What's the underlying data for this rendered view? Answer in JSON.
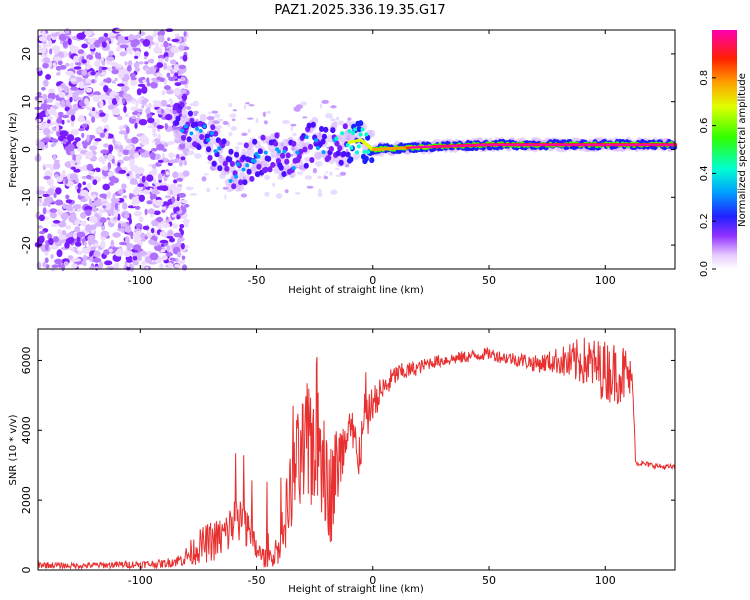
{
  "title": "PAZ1.2025.336.19.35.G17",
  "chart_data": [
    {
      "type": "heatmap",
      "title": "PAZ1.2025.336.19.35.G17",
      "xlabel": "Height of straight line (km)",
      "ylabel": "Frequency (Hz)",
      "xlim": [
        -144,
        130
      ],
      "ylim": [
        -25,
        25
      ],
      "x_ticks": [
        -100,
        -50,
        0,
        50,
        100
      ],
      "x_tick_labels": [
        "-100",
        "-50",
        "0",
        "50",
        "100"
      ],
      "y_ticks": [
        -20,
        -10,
        0,
        10,
        20
      ],
      "y_tick_labels": [
        "-20",
        "-10",
        "0",
        "10",
        "20"
      ],
      "colorbar": {
        "label": "Normalized spectral amplitude",
        "range": [
          0,
          1
        ],
        "ticks": [
          0.0,
          0.2,
          0.4,
          0.6,
          0.8
        ],
        "tick_labels": [
          "0.0",
          "0.2",
          "0.4",
          "0.6",
          "0.8"
        ]
      },
      "description_points": [
        {
          "x": -80,
          "freq": 5,
          "amp": 0.45
        },
        {
          "x": -70,
          "freq": 2,
          "amp": 0.3
        },
        {
          "x": -60,
          "freq": -5,
          "amp": 0.5
        },
        {
          "x": -45,
          "freq": 0,
          "amp": 0.5
        },
        {
          "x": -35,
          "freq": -2,
          "amp": 0.4
        },
        {
          "x": -25,
          "freq": 2,
          "amp": 0.45
        },
        {
          "x": -15,
          "freq": 1,
          "amp": 0.6
        },
        {
          "x": -5,
          "freq": 2,
          "amp": 0.7
        },
        {
          "x": 0,
          "freq": 0,
          "amp": 0.8
        },
        {
          "x": 20,
          "freq": 0.5,
          "amp": 0.9
        },
        {
          "x": 50,
          "freq": 1,
          "amp": 1.0
        },
        {
          "x": 80,
          "freq": 1,
          "amp": 1.0
        },
        {
          "x": 100,
          "freq": 1,
          "amp": 0.95
        },
        {
          "x": 130,
          "freq": 1,
          "amp": 1.0
        }
      ]
    },
    {
      "type": "line",
      "xlabel": "Height of straight line (km)",
      "ylabel": "SNR (10 * v/v)",
      "xlim": [
        -144,
        130
      ],
      "ylim": [
        0,
        6900
      ],
      "x_ticks": [
        -100,
        -50,
        0,
        50,
        100
      ],
      "x_tick_labels": [
        "-100",
        "-50",
        "0",
        "50",
        "100"
      ],
      "y_ticks": [
        0,
        2000,
        4000,
        6000
      ],
      "y_tick_labels": [
        "0",
        "2000",
        "4000",
        "6000"
      ],
      "series": [
        {
          "name": "SNR",
          "color": "#e83030",
          "x": [
            -144,
            -130,
            -110,
            -90,
            -82,
            -78,
            -74,
            -70,
            -66,
            -62,
            -58,
            -55,
            -52,
            -48,
            -44,
            -40,
            -36,
            -33,
            -30,
            -27,
            -24,
            -21,
            -18,
            -15,
            -12,
            -9,
            -6,
            -3,
            0,
            5,
            10,
            15,
            20,
            25,
            30,
            35,
            40,
            45,
            50,
            55,
            60,
            65,
            70,
            75,
            80,
            85,
            90,
            95,
            100,
            105,
            108,
            110,
            111,
            112,
            113,
            115,
            120,
            125,
            130
          ],
          "y": [
            150,
            120,
            150,
            180,
            300,
            500,
            700,
            800,
            900,
            1100,
            1700,
            1300,
            800,
            400,
            300,
            700,
            2000,
            2800,
            3200,
            3600,
            4000,
            3000,
            2200,
            3100,
            3400,
            3900,
            3300,
            4200,
            4800,
            5200,
            5600,
            5700,
            5800,
            5950,
            6000,
            6050,
            6100,
            6150,
            6200,
            6100,
            6050,
            6000,
            5900,
            5950,
            6000,
            5900,
            6000,
            5850,
            5700,
            5650,
            5600,
            5550,
            5400,
            5200,
            3100,
            3050,
            3000,
            2950,
            2950
          ],
          "noise_amplitude": [
            100,
            80,
            100,
            120,
            200,
            400,
            500,
            600,
            600,
            700,
            900,
            700,
            500,
            300,
            300,
            500,
            1200,
            1600,
            1800,
            2000,
            2200,
            1800,
            1500,
            1200,
            900,
            800,
            700,
            600,
            500,
            400,
            300,
            250,
            200,
            180,
            180,
            180,
            180,
            180,
            180,
            180,
            200,
            220,
            250,
            300,
            400,
            600,
            700,
            800,
            900,
            900,
            900,
            800,
            600,
            300,
            100,
            80,
            80,
            80,
            80
          ]
        }
      ]
    }
  ]
}
